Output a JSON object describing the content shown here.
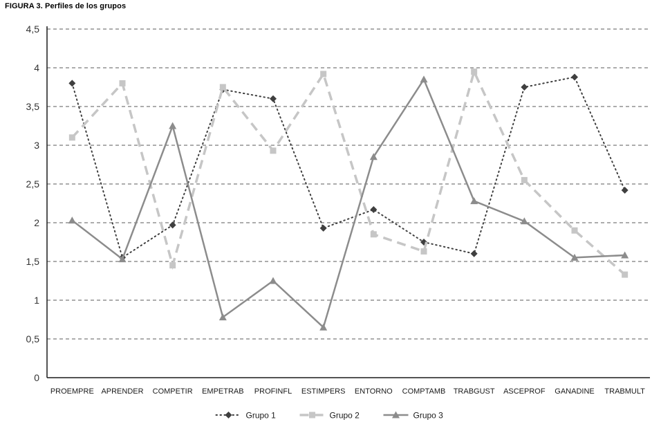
{
  "title": "FIGURA 3. Perfiles de los grupos",
  "chart_data": {
    "type": "line",
    "title": "FIGURA 3. Perfiles de los grupos",
    "xlabel": "",
    "ylabel": "",
    "ylim": [
      0,
      4.5
    ],
    "ytick_step": 0.5,
    "ytick_labels": [
      "0",
      "0,5",
      "1",
      "1,5",
      "2",
      "2,5",
      "3",
      "3,5",
      "4",
      "4,5"
    ],
    "grid": "horizontal-dashed",
    "legend_position": "bottom-center",
    "categories": [
      "PROEMPRE",
      "APRENDER",
      "COMPETIR",
      "EMPETRAB",
      "PROFINFL",
      "ESTIMPERS",
      "ENTORNO",
      "COMPTAMB",
      "TRABGUST",
      "ASCEPROF",
      "GANADINE",
      "TRABMULT"
    ],
    "series": [
      {
        "name": "Grupo 1",
        "marker": "diamond",
        "line_style": "dotted",
        "color": "#3f3f3f",
        "values": [
          3.8,
          1.55,
          1.97,
          3.72,
          3.6,
          1.93,
          2.17,
          1.75,
          1.6,
          3.75,
          3.88,
          2.42
        ]
      },
      {
        "name": "Grupo 2",
        "marker": "square",
        "line_style": "dashed",
        "color": "#c6c6c6",
        "values": [
          3.1,
          3.8,
          1.45,
          3.75,
          2.93,
          3.92,
          1.85,
          1.63,
          3.95,
          2.55,
          1.9,
          1.33
        ]
      },
      {
        "name": "Grupo 3",
        "marker": "triangle",
        "line_style": "solid",
        "color": "#8c8c8c",
        "values": [
          2.03,
          1.53,
          3.25,
          0.78,
          1.25,
          0.65,
          2.85,
          3.85,
          2.28,
          2.02,
          1.55,
          1.58
        ]
      }
    ],
    "colors": {
      "grid": "#5a5a5a",
      "axis": "#1a1a1a",
      "tick_text": "#333333",
      "category_text": "#1a1a1a"
    }
  }
}
